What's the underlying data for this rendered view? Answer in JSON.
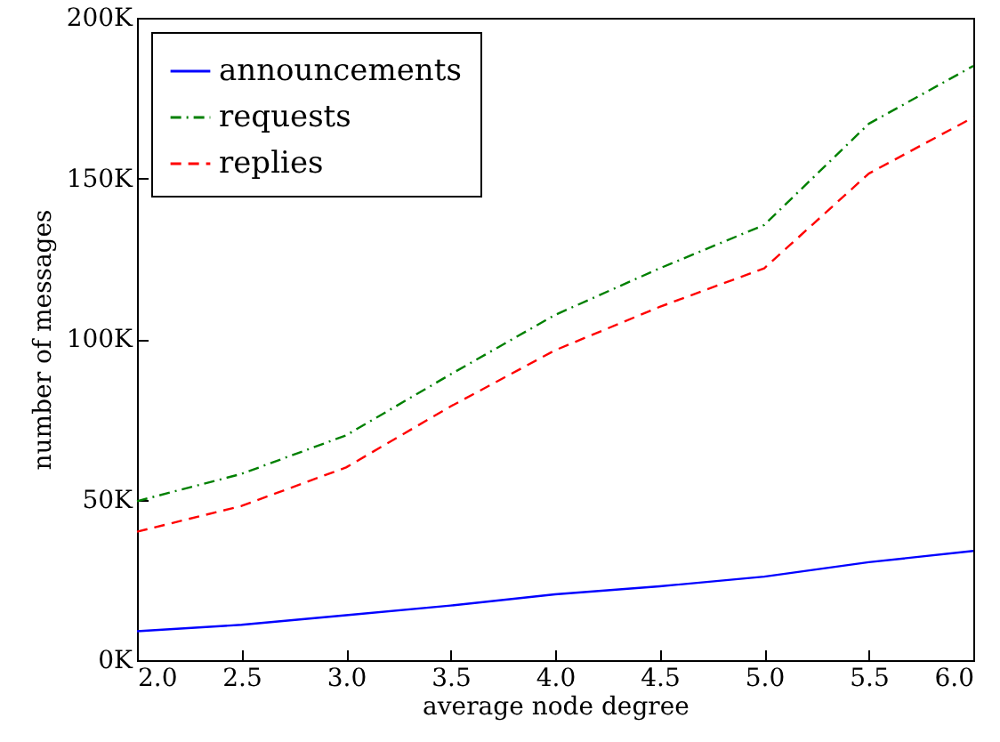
{
  "chart_data": {
    "type": "line",
    "xlabel": "average node degree",
    "ylabel": "number of messages",
    "x": [
      2.0,
      2.5,
      3.0,
      3.5,
      4.0,
      4.5,
      5.0,
      5.5,
      6.0
    ],
    "series": [
      {
        "name": "announcements",
        "color": "#0000ff",
        "line_style": "solid",
        "values": [
          9000,
          11000,
          14000,
          17000,
          20500,
          23000,
          26000,
          30500,
          34000
        ]
      },
      {
        "name": "requests",
        "color": "#008000",
        "line_style": "dashdot",
        "values": [
          49500,
          58000,
          70000,
          89000,
          107500,
          122000,
          135500,
          167000,
          185000
        ]
      },
      {
        "name": "replies",
        "color": "#ff0000",
        "line_style": "dashed",
        "values": [
          40000,
          48000,
          60000,
          79000,
          96500,
          110000,
          122000,
          151500,
          169000
        ]
      }
    ],
    "xlim": [
      2.0,
      6.0
    ],
    "xticks": [
      {
        "value": 2,
        "label": "2.0"
      },
      {
        "value": 2.5,
        "label": "2.5"
      },
      {
        "value": 3,
        "label": "3.0"
      },
      {
        "value": 3.5,
        "label": "3.5"
      },
      {
        "value": 4,
        "label": "4.0"
      },
      {
        "value": 4.5,
        "label": "4.5"
      },
      {
        "value": 5,
        "label": "5.0"
      },
      {
        "value": 5.5,
        "label": "5.5"
      },
      {
        "value": 6,
        "label": "6.0"
      }
    ],
    "ylim": [
      0,
      200000
    ],
    "yticks": [
      {
        "value": 0,
        "label": "0K"
      },
      {
        "value": 50000,
        "label": "50K"
      },
      {
        "value": 100000,
        "label": "100K"
      },
      {
        "value": 150000,
        "label": "150K"
      },
      {
        "value": 200000,
        "label": "200K"
      }
    ],
    "legend": "top left",
    "grid": false,
    "marker": "none"
  }
}
